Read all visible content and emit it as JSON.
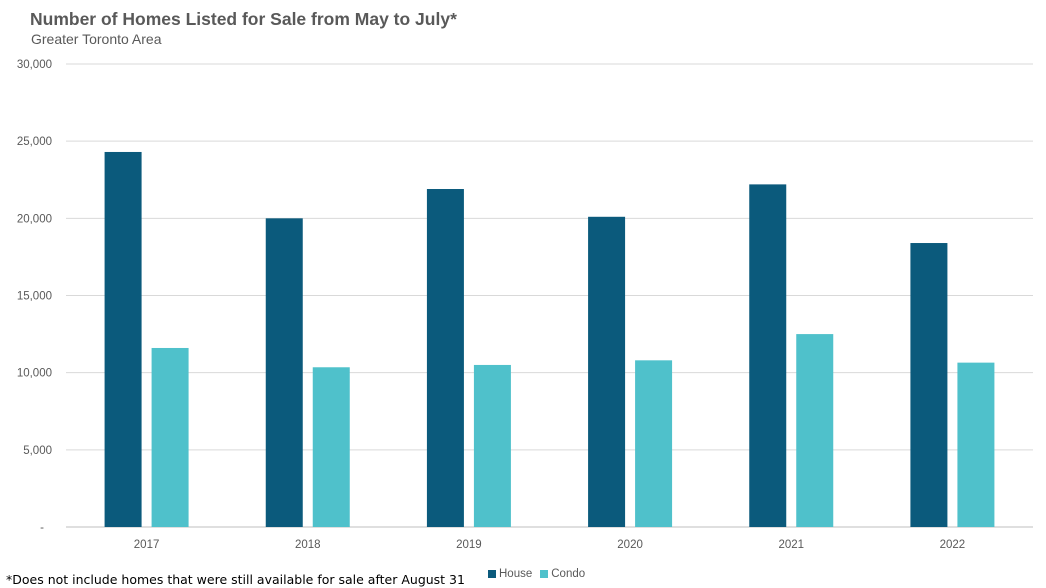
{
  "chart_data": {
    "type": "bar",
    "title": "Number of Homes Listed for Sale from May to July*",
    "subtitle": "Greater Toronto Area",
    "categories": [
      "2017",
      "2018",
      "2019",
      "2020",
      "2021",
      "2022"
    ],
    "series": [
      {
        "name": "House",
        "color": "#0b5a7c",
        "values": [
          24300,
          20000,
          21900,
          20100,
          22200,
          18400
        ]
      },
      {
        "name": "Condo",
        "color": "#4fc1cb",
        "values": [
          11600,
          10350,
          10500,
          10800,
          12500,
          10650
        ]
      }
    ],
    "ylim": [
      0,
      30000
    ],
    "yticks": [
      0,
      5000,
      10000,
      15000,
      20000,
      25000,
      30000
    ],
    "ytick_labels": [
      "-",
      "5,000",
      "10,000",
      "15,000",
      "20,000",
      "25,000",
      "30,000"
    ],
    "grid": true,
    "legend_position": "bottom",
    "footnote": "*Does not include homes that were still available for sale after August 31"
  }
}
